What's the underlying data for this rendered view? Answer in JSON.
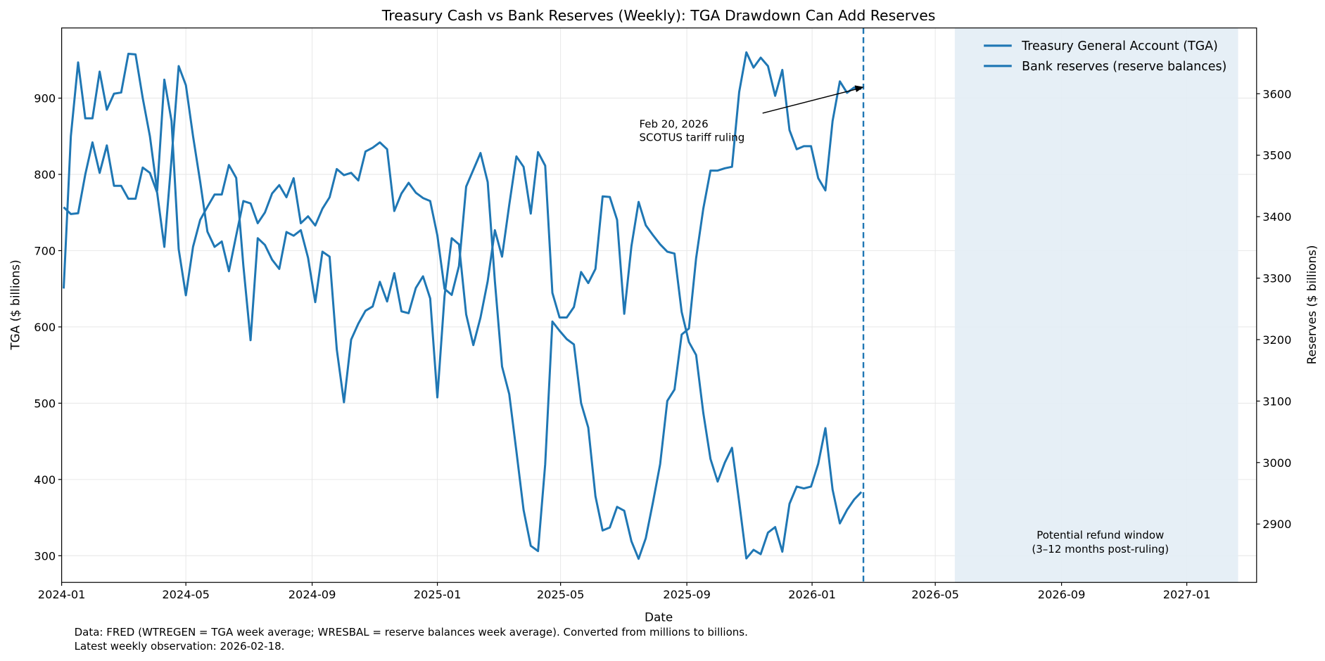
{
  "chart_data": {
    "type": "line",
    "title": "Treasury Cash vs Bank Reserves (Weekly): TGA Drawdown Can Add Reserves",
    "xlabel": "Date",
    "ylabel_left": "TGA ($ billions)",
    "ylabel_right": "Reserves ($ billions)",
    "xlim": [
      "2024-01-01",
      "2027-03-10"
    ],
    "ylim_left": [
      265,
      992
    ],
    "ylim_right": [
      2805,
      3707
    ],
    "grid": true,
    "legend_placement": "upper-right",
    "x_ticks": [
      "2024-01",
      "2024-05",
      "2024-09",
      "2025-01",
      "2025-05",
      "2025-09",
      "2026-01",
      "2026-05",
      "2026-09",
      "2027-01"
    ],
    "y_ticks_left": [
      300,
      400,
      500,
      600,
      700,
      800,
      900
    ],
    "y_ticks_right": [
      2900,
      3000,
      3100,
      3200,
      3300,
      3400,
      3500,
      3600
    ],
    "line_color": "#1f77b4",
    "shade_color": "#e3edf5",
    "dates": [
      "2024-01-03",
      "2024-01-10",
      "2024-01-17",
      "2024-01-24",
      "2024-01-31",
      "2024-02-07",
      "2024-02-14",
      "2024-02-21",
      "2024-02-28",
      "2024-03-06",
      "2024-03-13",
      "2024-03-20",
      "2024-03-27",
      "2024-04-03",
      "2024-04-10",
      "2024-04-17",
      "2024-04-24",
      "2024-05-01",
      "2024-05-08",
      "2024-05-15",
      "2024-05-22",
      "2024-05-29",
      "2024-06-05",
      "2024-06-12",
      "2024-06-19",
      "2024-06-26",
      "2024-07-03",
      "2024-07-10",
      "2024-07-17",
      "2024-07-24",
      "2024-07-31",
      "2024-08-07",
      "2024-08-14",
      "2024-08-21",
      "2024-08-28",
      "2024-09-04",
      "2024-09-11",
      "2024-09-18",
      "2024-09-25",
      "2024-10-02",
      "2024-10-09",
      "2024-10-16",
      "2024-10-23",
      "2024-10-30",
      "2024-11-06",
      "2024-11-13",
      "2024-11-20",
      "2024-11-27",
      "2024-12-04",
      "2024-12-11",
      "2024-12-18",
      "2024-12-25",
      "2025-01-01",
      "2025-01-08",
      "2025-01-15",
      "2025-01-22",
      "2025-01-29",
      "2025-02-05",
      "2025-02-12",
      "2025-02-19",
      "2025-02-26",
      "2025-03-05",
      "2025-03-12",
      "2025-03-19",
      "2025-03-26",
      "2025-04-02",
      "2025-04-09",
      "2025-04-16",
      "2025-04-23",
      "2025-04-30",
      "2025-05-07",
      "2025-05-14",
      "2025-05-21",
      "2025-05-28",
      "2025-06-04",
      "2025-06-11",
      "2025-06-18",
      "2025-06-25",
      "2025-07-02",
      "2025-07-09",
      "2025-07-16",
      "2025-07-23",
      "2025-07-30",
      "2025-08-06",
      "2025-08-13",
      "2025-08-20",
      "2025-08-27",
      "2025-09-03",
      "2025-09-10",
      "2025-09-17",
      "2025-09-24",
      "2025-10-01",
      "2025-10-08",
      "2025-10-15",
      "2025-10-22",
      "2025-10-29",
      "2025-11-05",
      "2025-11-12",
      "2025-11-19",
      "2025-11-26",
      "2025-12-03",
      "2025-12-10",
      "2025-12-17",
      "2025-12-24",
      "2025-12-31",
      "2026-01-07",
      "2026-01-14",
      "2026-01-21",
      "2026-01-28",
      "2026-02-04",
      "2026-02-11",
      "2026-02-18"
    ],
    "series": [
      {
        "name": "Treasury General Account (TGA)",
        "axis": "left",
        "values": [
          757,
          748,
          749,
          800,
          842,
          802,
          838,
          785,
          785,
          768,
          768,
          809,
          802,
          776,
          705,
          820,
          942,
          917,
          850,
          790,
          725,
          705,
          712,
          673,
          720,
          765,
          762,
          736,
          750,
          775,
          786,
          770,
          795,
          736,
          745,
          733,
          755,
          770,
          807,
          799,
          802,
          792,
          830,
          835,
          842,
          833,
          752,
          775,
          789,
          776,
          769,
          765,
          720,
          650,
          642,
          680,
          784,
          806,
          828,
          790,
          660,
          548,
          512,
          437,
          360,
          313,
          306,
          420,
          607,
          595,
          584,
          577,
          500,
          468,
          378,
          333,
          337,
          364,
          359,
          319,
          296,
          323,
          370,
          420,
          503,
          518,
          590,
          598,
          690,
          755,
          805,
          805,
          808,
          810,
          908,
          960,
          940,
          953,
          942,
          903,
          937,
          858,
          833,
          837,
          837,
          795,
          779,
          870,
          922,
          907,
          914,
          912
        ]
      },
      {
        "name": "Bank reserves (reserve balances)",
        "axis": "right",
        "values": [
          3283,
          3531,
          3651,
          3560,
          3560,
          3636,
          3574,
          3600,
          3602,
          3665,
          3664,
          3593,
          3531,
          3442,
          3623,
          3556,
          3347,
          3272,
          3351,
          3395,
          3416,
          3436,
          3436,
          3484,
          3463,
          3320,
          3199,
          3365,
          3354,
          3330,
          3315,
          3375,
          3369,
          3378,
          3333,
          3261,
          3343,
          3335,
          3184,
          3098,
          3200,
          3226,
          3247,
          3254,
          3294,
          3262,
          3308,
          3246,
          3243,
          3284,
          3303,
          3267,
          3106,
          3271,
          3365,
          3355,
          3241,
          3191,
          3236,
          3295,
          3378,
          3335,
          3419,
          3498,
          3481,
          3405,
          3505,
          3483,
          3276,
          3236,
          3236,
          3253,
          3310,
          3292,
          3315,
          3433,
          3432,
          3395,
          3242,
          3352,
          3424,
          3386,
          3370,
          3355,
          3343,
          3340,
          3245,
          3196,
          3175,
          3081,
          3006,
          2969,
          3000,
          3024,
          2936,
          2844,
          2858,
          2851,
          2886,
          2895,
          2855,
          2933,
          2961,
          2958,
          2961,
          2998,
          3056,
          2956,
          2901,
          2923,
          2940,
          2952
        ]
      }
    ],
    "vline": {
      "date": "2026-02-20",
      "style": "dashed"
    },
    "shaded_window": {
      "start": "2026-05-20",
      "end": "2027-02-20"
    },
    "annotations": {
      "ruling_line1": "Feb 20, 2026",
      "ruling_line2": "SCOTUS tariff ruling",
      "refund_line1": "Potential refund window",
      "refund_line2": "(3–12 months post-ruling)"
    },
    "footnote": {
      "line1": "Data: FRED (WTREGEN = TGA week average; WRESBAL = reserve balances week average). Converted from millions to billions.",
      "line2": "Latest weekly observation: 2026-02-18."
    }
  }
}
